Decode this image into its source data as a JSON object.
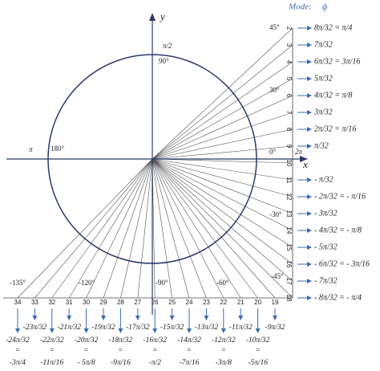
{
  "mode": {
    "label": "Mode:",
    "symbol": "ϕ"
  },
  "axes": {
    "x": "x",
    "y": "y"
  },
  "angle_labels": [
    "π/2",
    "90°",
    "π",
    "180°",
    "0°",
    "2π",
    "45°",
    "30°",
    "-30°",
    "-45°",
    "-60°",
    "-90°",
    "-120°",
    "-135°"
  ],
  "right_rows": [
    {
      "number": "2",
      "label": "8π/32 = π/4"
    },
    {
      "number": "3",
      "label": "7π/32"
    },
    {
      "number": "4",
      "label": "6π/32 = 3π/16"
    },
    {
      "number": "5",
      "label": "5π/32"
    },
    {
      "number": "6",
      "label": "4π/32 = π/8"
    },
    {
      "number": "7",
      "label": "3π/32"
    },
    {
      "number": "8",
      "label": "2π/32 = π/16"
    },
    {
      "number": "9",
      "label": "π/32"
    },
    {
      "number": "10"
    },
    {
      "number": "11",
      "label": "- π/32"
    },
    {
      "number": "12",
      "label": "- 2π/32 = - π/16"
    },
    {
      "number": "13",
      "label": "- 3π/32"
    },
    {
      "number": "14",
      "label": "- 4π/32 = - π/8"
    },
    {
      "number": "15",
      "label": "- 5π/32"
    },
    {
      "number": "16",
      "label": "- 6π/32 = - 3π/16"
    },
    {
      "number": "17",
      "label": "- 7π/32"
    },
    {
      "number": "18",
      "label": "- 8π/32 = - π/4"
    }
  ],
  "bottom_columns": [
    {
      "number": "34",
      "label": "-24π/32",
      "equals": "=",
      "reduced": "-3π/4"
    },
    {
      "number": "33",
      "label": "-23π/32"
    },
    {
      "number": "32",
      "label": "-22π/32",
      "equals": "=",
      "reduced": "-11π/16"
    },
    {
      "number": "31",
      "label": "-21π/32"
    },
    {
      "number": "30",
      "label": "-20π/32",
      "equals": "=",
      "reduced": "- 5π/8"
    },
    {
      "number": "29",
      "label": "-19π/32"
    },
    {
      "number": "28",
      "label": "-18π/32",
      "equals": "=",
      "reduced": "-9π/16"
    },
    {
      "number": "27",
      "label": "-17π/32"
    },
    {
      "number": "26",
      "label": "-16π/32",
      "equals": "=",
      "reduced": "-π/2"
    },
    {
      "number": "25",
      "label": "-15π/32"
    },
    {
      "number": "24",
      "label": "-14π/32",
      "equals": "=",
      "reduced": "-7π/16"
    },
    {
      "number": "23",
      "label": "-13π/32"
    },
    {
      "number": "22",
      "label": "-12π/32",
      "equals": "=",
      "reduced": "-3π/8"
    },
    {
      "number": "21",
      "label": "-11π/32"
    },
    {
      "number": "20",
      "label": "-10π/32",
      "equals": "=",
      "reduced": "-5π/16"
    },
    {
      "number": "19",
      "label": "-9π/32"
    }
  ]
}
